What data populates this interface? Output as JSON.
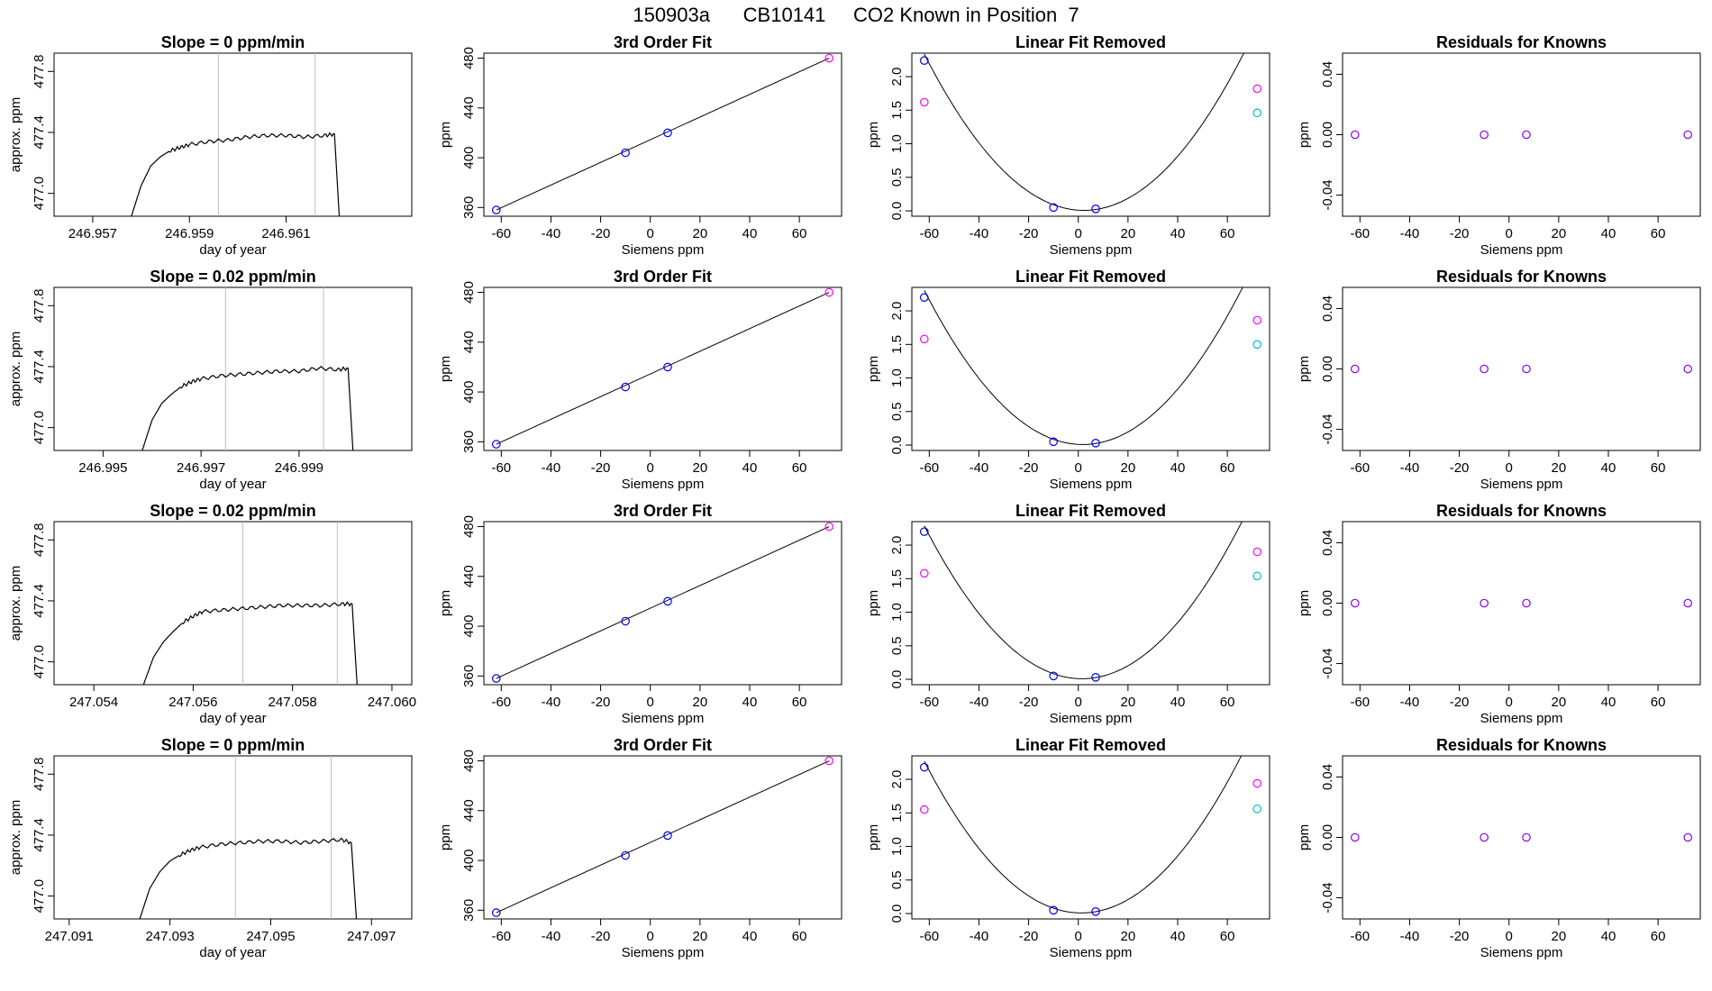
{
  "page_title": "150903a      CB10141     CO2 Known in Position  7",
  "colors": {
    "trace": "#000000",
    "gridline": "#bebebe",
    "blue_point": "#0000ff",
    "magenta_point": "#ff00ff",
    "cyan_point": "#00bfbf",
    "purple_point": "#8a00ff",
    "curve": "#000000"
  },
  "chart_data": [
    {
      "type": "line",
      "title": "Slope =  0  ppm/min",
      "xlabel": "day of year",
      "ylabel": "approx. ppm",
      "xlim": [
        246.9562,
        246.9636
      ],
      "ylim": [
        476.85,
        477.92
      ],
      "xticks": [
        "246.957",
        "246.959",
        "246.961"
      ],
      "xtick_values": [
        246.957,
        246.959,
        246.961
      ],
      "yticks": [
        "477.0",
        "477.4",
        "477.8"
      ],
      "ytick_values": [
        477.0,
        477.4,
        477.8
      ],
      "vlines": [
        246.9596,
        246.9616
      ],
      "series": [
        {
          "x": [
            246.9578,
            246.958,
            246.9582,
            246.9584,
            246.9586,
            246.9588,
            246.959,
            246.9594,
            246.9598,
            246.9602,
            246.9606,
            246.961,
            246.9614,
            246.9618,
            246.962,
            246.9621
          ],
          "y": [
            476.85,
            477.05,
            477.18,
            477.24,
            477.28,
            477.3,
            477.32,
            477.34,
            477.35,
            477.37,
            477.38,
            477.38,
            477.37,
            477.38,
            477.39,
            476.85
          ]
        }
      ]
    },
    {
      "type": "scatter",
      "title": "3rd Order Fit",
      "xlabel": "Siemens ppm",
      "ylabel": "ppm",
      "xlim": [
        -67,
        77
      ],
      "ylim": [
        353,
        484
      ],
      "xticks": [
        "-60",
        "-40",
        "-20",
        "0",
        "20",
        "40",
        "60"
      ],
      "xtick_values": [
        -60,
        -40,
        -20,
        0,
        20,
        40,
        60
      ],
      "yticks": [
        "360",
        "400",
        "440",
        "480"
      ],
      "ytick_values": [
        360,
        400,
        440,
        480
      ],
      "points": [
        {
          "x": -62,
          "y": 358,
          "color": "blue"
        },
        {
          "x": -10,
          "y": 404,
          "color": "blue"
        },
        {
          "x": 7,
          "y": 420,
          "color": "blue"
        },
        {
          "x": 72,
          "y": 480,
          "color": "magenta"
        }
      ],
      "fit_line": {
        "x": [
          -62,
          72
        ],
        "y": [
          358,
          480
        ]
      }
    },
    {
      "type": "scatter",
      "title": "Linear Fit Removed",
      "xlabel": "Siemens ppm",
      "ylabel": "ppm",
      "xlim": [
        -67,
        77
      ],
      "ylim": [
        -0.08,
        2.35
      ],
      "xticks": [
        "-60",
        "-40",
        "-20",
        "0",
        "20",
        "40",
        "60"
      ],
      "xtick_values": [
        -60,
        -40,
        -20,
        0,
        20,
        40,
        60
      ],
      "yticks": [
        "0.0",
        "0.5",
        "1.0",
        "1.5",
        "2.0"
      ],
      "ytick_values": [
        0.0,
        0.5,
        1.0,
        1.5,
        2.0
      ],
      "points": [
        {
          "x": -62,
          "y": 2.24,
          "color": "blue"
        },
        {
          "x": -62,
          "y": 1.62,
          "color": "magenta"
        },
        {
          "x": -10,
          "y": 0.05,
          "color": "blue"
        },
        {
          "x": 7,
          "y": 0.03,
          "color": "blue"
        },
        {
          "x": 72,
          "y": 1.82,
          "color": "magenta"
        },
        {
          "x": 72,
          "y": 1.46,
          "color": "cyan"
        }
      ],
      "curve": {
        "a": 0.000565,
        "b": -0.0025,
        "c": 0.01
      }
    },
    {
      "type": "scatter",
      "title": "Residuals for Knowns",
      "xlabel": "Siemens ppm",
      "ylabel": "ppm",
      "xlim": [
        -67,
        77
      ],
      "ylim": [
        -0.054,
        0.054
      ],
      "xticks": [
        "-60",
        "-40",
        "-20",
        "0",
        "20",
        "40",
        "60"
      ],
      "xtick_values": [
        -60,
        -40,
        -20,
        0,
        20,
        40,
        60
      ],
      "yticks": [
        "-0.04",
        "0.00",
        "0.04"
      ],
      "ytick_values": [
        -0.04,
        0.0,
        0.04
      ],
      "points": [
        {
          "x": -62,
          "y": 0.0,
          "color": "purple"
        },
        {
          "x": -10,
          "y": 0.0,
          "color": "purple"
        },
        {
          "x": 7,
          "y": 0.0,
          "color": "purple"
        },
        {
          "x": 72,
          "y": 0.0,
          "color": "purple"
        }
      ]
    },
    {
      "type": "line",
      "title": "Slope =  0.02  ppm/min",
      "xlabel": "day of year",
      "ylabel": "approx. ppm",
      "xlim": [
        246.994,
        247.0013
      ],
      "ylim": [
        476.85,
        477.92
      ],
      "xticks": [
        "246.995",
        "246.997",
        "246.999"
      ],
      "xtick_values": [
        246.995,
        246.997,
        246.999
      ],
      "yticks": [
        "477.0",
        "477.4",
        "477.8"
      ],
      "ytick_values": [
        477.0,
        477.4,
        477.8
      ],
      "vlines": [
        246.9975,
        246.9995
      ],
      "series": [
        {
          "x": [
            246.9958,
            246.996,
            246.9962,
            246.9964,
            246.9966,
            246.9968,
            246.997,
            246.9974,
            246.9978,
            246.9982,
            246.9986,
            246.999,
            246.9994,
            246.9998,
            247.0,
            247.0001
          ],
          "y": [
            476.85,
            477.05,
            477.16,
            477.22,
            477.27,
            477.3,
            477.32,
            477.34,
            477.35,
            477.36,
            477.37,
            477.37,
            477.39,
            477.38,
            477.39,
            476.85
          ]
        }
      ]
    },
    {
      "type": "scatter",
      "title": "3rd Order Fit",
      "xlabel": "Siemens ppm",
      "ylabel": "ppm",
      "xlim": [
        -67,
        77
      ],
      "ylim": [
        353,
        484
      ],
      "xticks": [
        "-60",
        "-40",
        "-20",
        "0",
        "20",
        "40",
        "60"
      ],
      "xtick_values": [
        -60,
        -40,
        -20,
        0,
        20,
        40,
        60
      ],
      "yticks": [
        "360",
        "400",
        "440",
        "480"
      ],
      "ytick_values": [
        360,
        400,
        440,
        480
      ],
      "points": [
        {
          "x": -62,
          "y": 358,
          "color": "blue"
        },
        {
          "x": -10,
          "y": 404,
          "color": "blue"
        },
        {
          "x": 7,
          "y": 420,
          "color": "blue"
        },
        {
          "x": 72,
          "y": 480,
          "color": "magenta"
        }
      ],
      "fit_line": {
        "x": [
          -62,
          72
        ],
        "y": [
          358,
          480
        ]
      }
    },
    {
      "type": "scatter",
      "title": "Linear Fit Removed",
      "xlabel": "Siemens ppm",
      "ylabel": "ppm",
      "xlim": [
        -67,
        77
      ],
      "ylim": [
        -0.08,
        2.35
      ],
      "xticks": [
        "-60",
        "-40",
        "-20",
        "0",
        "20",
        "40",
        "60"
      ],
      "xtick_values": [
        -60,
        -40,
        -20,
        0,
        20,
        40,
        60
      ],
      "yticks": [
        "0.0",
        "0.5",
        "1.0",
        "1.5",
        "2.0"
      ],
      "ytick_values": [
        0.0,
        0.5,
        1.0,
        1.5,
        2.0
      ],
      "points": [
        {
          "x": -62,
          "y": 2.2,
          "color": "blue"
        },
        {
          "x": -62,
          "y": 1.58,
          "color": "magenta"
        },
        {
          "x": -10,
          "y": 0.05,
          "color": "blue"
        },
        {
          "x": 7,
          "y": 0.03,
          "color": "blue"
        },
        {
          "x": 72,
          "y": 1.86,
          "color": "magenta"
        },
        {
          "x": 72,
          "y": 1.5,
          "color": "cyan"
        }
      ],
      "curve": {
        "a": 0.000565,
        "b": -0.002,
        "c": 0.01
      }
    },
    {
      "type": "scatter",
      "title": "Residuals for Knowns",
      "xlabel": "Siemens ppm",
      "ylabel": "ppm",
      "xlim": [
        -67,
        77
      ],
      "ylim": [
        -0.054,
        0.054
      ],
      "xticks": [
        "-60",
        "-40",
        "-20",
        "0",
        "20",
        "40",
        "60"
      ],
      "xtick_values": [
        -60,
        -40,
        -20,
        0,
        20,
        40,
        60
      ],
      "yticks": [
        "-0.04",
        "0.00",
        "0.04"
      ],
      "ytick_values": [
        -0.04,
        0.0,
        0.04
      ],
      "points": [
        {
          "x": -62,
          "y": 0.0,
          "color": "purple"
        },
        {
          "x": -10,
          "y": 0.0,
          "color": "purple"
        },
        {
          "x": 7,
          "y": 0.0,
          "color": "purple"
        },
        {
          "x": 72,
          "y": 0.0,
          "color": "purple"
        }
      ]
    },
    {
      "type": "line",
      "title": "Slope =  0.02  ppm/min",
      "xlabel": "day of year",
      "ylabel": "approx. ppm",
      "xlim": [
        247.0532,
        247.0604
      ],
      "ylim": [
        476.85,
        477.92
      ],
      "xticks": [
        "247.054",
        "247.056",
        "247.058",
        "247.060"
      ],
      "xtick_values": [
        247.054,
        247.056,
        247.058,
        247.06
      ],
      "yticks": [
        "477.0",
        "477.4",
        "477.8"
      ],
      "ytick_values": [
        477.0,
        477.4,
        477.8
      ],
      "vlines": [
        247.057,
        247.0589
      ],
      "series": [
        {
          "x": [
            247.055,
            247.0552,
            247.0554,
            247.0556,
            247.0558,
            247.056,
            247.0562,
            247.0566,
            247.057,
            247.0574,
            247.0578,
            247.0582,
            247.0586,
            247.059,
            247.0592,
            247.0593
          ],
          "y": [
            476.85,
            477.03,
            477.13,
            477.2,
            477.26,
            477.3,
            477.33,
            477.34,
            477.35,
            477.36,
            477.37,
            477.37,
            477.37,
            477.38,
            477.38,
            476.85
          ]
        }
      ]
    },
    {
      "type": "scatter",
      "title": "3rd Order Fit",
      "xlabel": "Siemens ppm",
      "ylabel": "ppm",
      "xlim": [
        -67,
        77
      ],
      "ylim": [
        353,
        484
      ],
      "xticks": [
        "-60",
        "-40",
        "-20",
        "0",
        "20",
        "40",
        "60"
      ],
      "xtick_values": [
        -60,
        -40,
        -20,
        0,
        20,
        40,
        60
      ],
      "yticks": [
        "360",
        "400",
        "440",
        "480"
      ],
      "ytick_values": [
        360,
        400,
        440,
        480
      ],
      "points": [
        {
          "x": -62,
          "y": 358,
          "color": "blue"
        },
        {
          "x": -10,
          "y": 404,
          "color": "blue"
        },
        {
          "x": 7,
          "y": 420,
          "color": "blue"
        },
        {
          "x": 72,
          "y": 480,
          "color": "magenta"
        }
      ],
      "fit_line": {
        "x": [
          -62,
          72
        ],
        "y": [
          358,
          480
        ]
      }
    },
    {
      "type": "scatter",
      "title": "Linear Fit Removed",
      "xlabel": "Siemens ppm",
      "ylabel": "ppm",
      "xlim": [
        -67,
        77
      ],
      "ylim": [
        -0.08,
        2.35
      ],
      "xticks": [
        "-60",
        "-40",
        "-20",
        "0",
        "20",
        "40",
        "60"
      ],
      "xtick_values": [
        -60,
        -40,
        -20,
        0,
        20,
        40,
        60
      ],
      "yticks": [
        "0.0",
        "0.5",
        "1.0",
        "1.5",
        "2.0"
      ],
      "ytick_values": [
        0.0,
        0.5,
        1.0,
        1.5,
        2.0
      ],
      "points": [
        {
          "x": -62,
          "y": 2.2,
          "color": "blue"
        },
        {
          "x": -62,
          "y": 1.58,
          "color": "magenta"
        },
        {
          "x": -10,
          "y": 0.05,
          "color": "blue"
        },
        {
          "x": 7,
          "y": 0.03,
          "color": "blue"
        },
        {
          "x": 72,
          "y": 1.9,
          "color": "magenta"
        },
        {
          "x": 72,
          "y": 1.54,
          "color": "cyan"
        }
      ],
      "curve": {
        "a": 0.000565,
        "b": -0.0017,
        "c": 0.01
      }
    },
    {
      "type": "scatter",
      "title": "Residuals for Knowns",
      "xlabel": "Siemens ppm",
      "ylabel": "ppm",
      "xlim": [
        -67,
        77
      ],
      "ylim": [
        -0.054,
        0.054
      ],
      "xticks": [
        "-60",
        "-40",
        "-20",
        "0",
        "20",
        "40",
        "60"
      ],
      "xtick_values": [
        -60,
        -40,
        -20,
        0,
        20,
        40,
        60
      ],
      "yticks": [
        "-0.04",
        "0.00",
        "0.04"
      ],
      "ytick_values": [
        -0.04,
        0.0,
        0.04
      ],
      "points": [
        {
          "x": -62,
          "y": 0.0,
          "color": "purple"
        },
        {
          "x": -10,
          "y": 0.0,
          "color": "purple"
        },
        {
          "x": 7,
          "y": 0.0,
          "color": "purple"
        },
        {
          "x": 72,
          "y": 0.0,
          "color": "purple"
        }
      ]
    },
    {
      "type": "line",
      "title": "Slope =  0  ppm/min",
      "xlabel": "day of year",
      "ylabel": "approx. ppm",
      "xlim": [
        247.0907,
        247.0978
      ],
      "ylim": [
        476.85,
        477.92
      ],
      "xticks": [
        "247.091",
        "247.093",
        "247.095",
        "247.097"
      ],
      "xtick_values": [
        247.091,
        247.093,
        247.095,
        247.097
      ],
      "yticks": [
        "477.0",
        "477.4",
        "477.8"
      ],
      "ytick_values": [
        477.0,
        477.4,
        477.8
      ],
      "vlines": [
        247.0943,
        247.0962
      ],
      "series": [
        {
          "x": [
            247.0924,
            247.0926,
            247.0928,
            247.093,
            247.0932,
            247.0934,
            247.0936,
            247.094,
            247.0944,
            247.0948,
            247.0952,
            247.0956,
            247.096,
            247.0964,
            247.0966,
            247.0967
          ],
          "y": [
            476.85,
            477.05,
            477.16,
            477.23,
            477.27,
            477.3,
            477.32,
            477.34,
            477.35,
            477.36,
            477.36,
            477.35,
            477.36,
            477.37,
            477.35,
            476.85
          ]
        }
      ]
    },
    {
      "type": "scatter",
      "title": "3rd Order Fit",
      "xlabel": "Siemens ppm",
      "ylabel": "ppm",
      "xlim": [
        -67,
        77
      ],
      "ylim": [
        353,
        484
      ],
      "xticks": [
        "-60",
        "-40",
        "-20",
        "0",
        "20",
        "40",
        "60"
      ],
      "xtick_values": [
        -60,
        -40,
        -20,
        0,
        20,
        40,
        60
      ],
      "yticks": [
        "360",
        "400",
        "440",
        "480"
      ],
      "ytick_values": [
        360,
        400,
        440,
        480
      ],
      "points": [
        {
          "x": -62,
          "y": 358,
          "color": "blue"
        },
        {
          "x": -10,
          "y": 404,
          "color": "blue"
        },
        {
          "x": 7,
          "y": 420,
          "color": "blue"
        },
        {
          "x": 72,
          "y": 480,
          "color": "magenta"
        }
      ],
      "fit_line": {
        "x": [
          -62,
          72
        ],
        "y": [
          358,
          480
        ]
      }
    },
    {
      "type": "scatter",
      "title": "Linear Fit Removed",
      "xlabel": "Siemens ppm",
      "ylabel": "ppm",
      "xlim": [
        -67,
        77
      ],
      "ylim": [
        -0.08,
        2.35
      ],
      "xticks": [
        "-60",
        "-40",
        "-20",
        "0",
        "20",
        "40",
        "60"
      ],
      "xtick_values": [
        -60,
        -40,
        -20,
        0,
        20,
        40,
        60
      ],
      "yticks": [
        "0.0",
        "0.5",
        "1.0",
        "1.5",
        "2.0"
      ],
      "ytick_values": [
        0.0,
        0.5,
        1.0,
        1.5,
        2.0
      ],
      "points": [
        {
          "x": -62,
          "y": 2.18,
          "color": "blue"
        },
        {
          "x": -62,
          "y": 1.55,
          "color": "magenta"
        },
        {
          "x": -10,
          "y": 0.05,
          "color": "blue"
        },
        {
          "x": 7,
          "y": 0.03,
          "color": "blue"
        },
        {
          "x": 72,
          "y": 1.94,
          "color": "magenta"
        },
        {
          "x": 72,
          "y": 1.56,
          "color": "cyan"
        }
      ],
      "curve": {
        "a": 0.000565,
        "b": -0.0014,
        "c": 0.01
      }
    },
    {
      "type": "scatter",
      "title": "Residuals for Knowns",
      "xlabel": "Siemens ppm",
      "ylabel": "ppm",
      "xlim": [
        -67,
        77
      ],
      "ylim": [
        -0.054,
        0.054
      ],
      "xticks": [
        "-60",
        "-40",
        "-20",
        "0",
        "20",
        "40",
        "60"
      ],
      "xtick_values": [
        -60,
        -40,
        -20,
        0,
        20,
        40,
        60
      ],
      "yticks": [
        "-0.04",
        "0.00",
        "0.04"
      ],
      "ytick_values": [
        -0.04,
        0.0,
        0.04
      ],
      "points": [
        {
          "x": -62,
          "y": 0.0,
          "color": "purple"
        },
        {
          "x": -10,
          "y": 0.0,
          "color": "purple"
        },
        {
          "x": 7,
          "y": 0.0,
          "color": "purple"
        },
        {
          "x": 72,
          "y": 0.0,
          "color": "purple"
        }
      ]
    }
  ]
}
